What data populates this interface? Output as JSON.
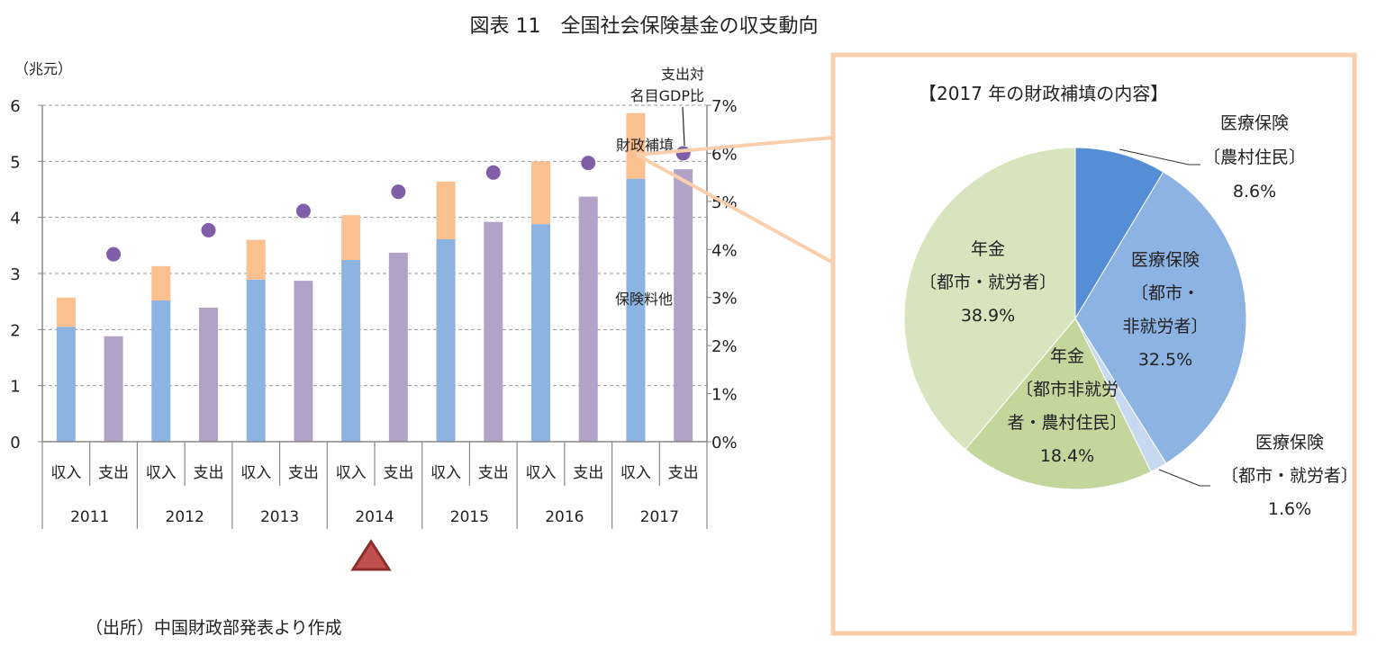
{
  "title": "図表 11　全国社会保険基金の収支動向",
  "source": "（出所）中国財政部発表より作成",
  "colors": {
    "insurance": "#8db3e2",
    "subsidy": "#fac090",
    "expenditure": "#b3a2c7",
    "ratio": "#7f5fa8",
    "box": "#f9cfae",
    "marker": "#c0504d"
  },
  "chart_data": [
    {
      "type": "bar",
      "stacked": true,
      "left_unit": "（兆元）",
      "right_axis_label": [
        "支出対",
        "名目GDP比"
      ],
      "ylim": [
        0,
        6
      ],
      "yticks": [
        "0",
        "1",
        "2",
        "3",
        "4",
        "5",
        "6"
      ],
      "y2lim": [
        0,
        7
      ],
      "y2ticks": [
        "0%",
        "1%",
        "2%",
        "3%",
        "4%",
        "5%",
        "6%",
        "7%"
      ],
      "grid": true,
      "years": [
        "2011",
        "2012",
        "2013",
        "2014",
        "2015",
        "2016",
        "2017"
      ],
      "sub_categories": [
        "収入",
        "支出"
      ],
      "series": [
        {
          "name": "保険料他",
          "values": [
            2.05,
            2.52,
            2.89,
            3.24,
            3.61,
            3.88,
            4.69
          ]
        },
        {
          "name": "財政補填",
          "values": [
            0.52,
            0.61,
            0.71,
            0.8,
            1.03,
            1.12,
            1.17
          ]
        },
        {
          "name": "支出",
          "values": [
            1.88,
            2.39,
            2.87,
            3.37,
            3.92,
            4.37,
            4.86
          ]
        },
        {
          "name": "支出対名目GDP比",
          "axis": "right",
          "unit": "%",
          "values": [
            3.9,
            4.4,
            4.8,
            5.2,
            5.6,
            5.8,
            6.0
          ]
        }
      ],
      "highlight_marker": {
        "year": "2014",
        "icon": "red-triangle-icon"
      }
    },
    {
      "type": "pie",
      "title": "【2017 年の財政補填の内容】",
      "slices": [
        {
          "label": [
            "医療保険",
            "〔農村住民〕"
          ],
          "value": 8.6,
          "value_label": "8.6%",
          "color": "#558ed5"
        },
        {
          "label": [
            "医療保険",
            "〔都市・",
            "非就労者〕"
          ],
          "value": 32.5,
          "value_label": "32.5%",
          "color": "#8db3e2"
        },
        {
          "label": [
            "医療保険",
            "〔都市・就労者〕"
          ],
          "value": 1.6,
          "value_label": "1.6%",
          "color": "#c6d9f0"
        },
        {
          "label": [
            "年金",
            "〔都市非就労",
            "者・農村住民〕"
          ],
          "value": 18.4,
          "value_label": "18.4%",
          "color": "#c3d69b"
        },
        {
          "label": [
            "年金",
            "〔都市・就労者〕"
          ],
          "value": 38.9,
          "value_label": "38.9%",
          "color": "#d7e4bd"
        }
      ]
    }
  ]
}
